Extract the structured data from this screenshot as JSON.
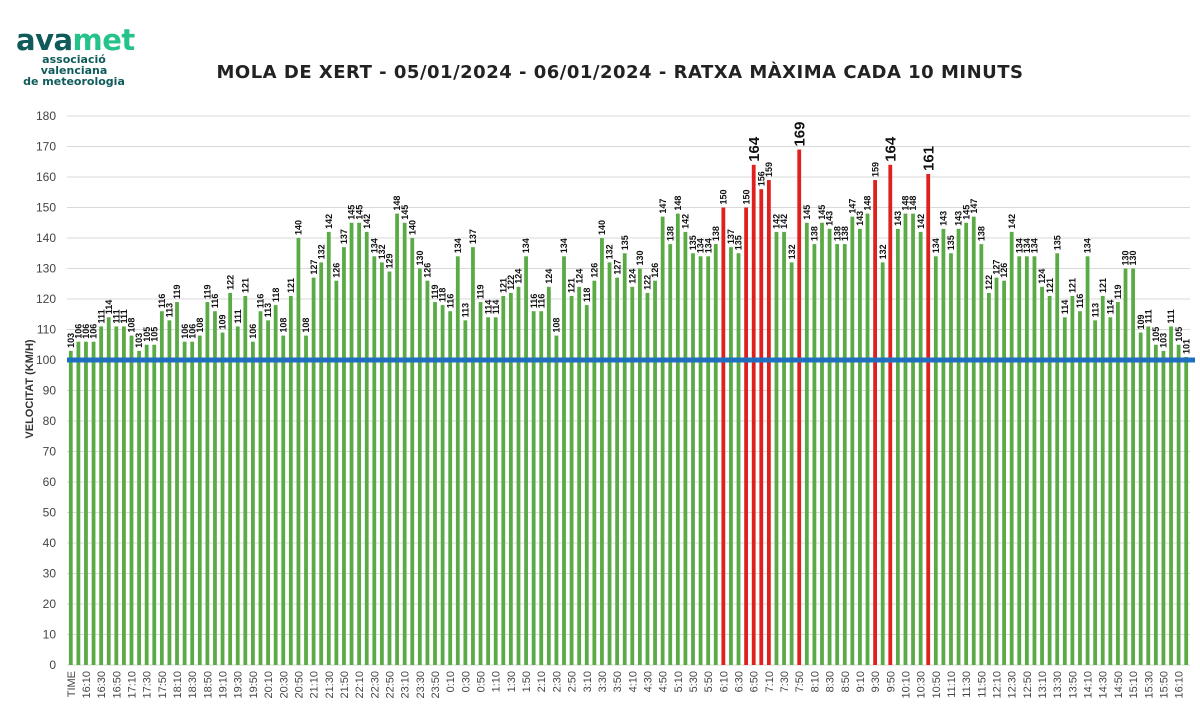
{
  "logo": {
    "part1": "ava",
    "part2": "met",
    "line1": "associació valenciana",
    "line2": "de meteorologia"
  },
  "chart_data": {
    "type": "bar",
    "title": "MOLA DE XERT - 05/01/2024 - 06/01/2024 - RATXA MÀXIMA CADA 10 MINUTS",
    "ylabel": "VELOCITAT  (KM/H)",
    "xlabel": "",
    "ylim": [
      0,
      180
    ],
    "ytick_step": 10,
    "grid": true,
    "first_category_label": "TIME",
    "start_time": "16:00",
    "interval_minutes": 10,
    "x_label_every": 2,
    "values": [
      103,
      106,
      106,
      106,
      111,
      114,
      111,
      111,
      108,
      103,
      105,
      105,
      116,
      113,
      119,
      106,
      106,
      108,
      119,
      116,
      109,
      122,
      111,
      121,
      106,
      116,
      113,
      118,
      108,
      121,
      140,
      108,
      127,
      132,
      142,
      126,
      137,
      145,
      145,
      142,
      134,
      132,
      129,
      148,
      145,
      140,
      130,
      126,
      119,
      118,
      116,
      134,
      113,
      137,
      119,
      114,
      114,
      121,
      122,
      124,
      134,
      116,
      116,
      124,
      108,
      134,
      121,
      124,
      118,
      126,
      140,
      132,
      127,
      135,
      124,
      130,
      122,
      126,
      147,
      138,
      148,
      142,
      135,
      134,
      134,
      138,
      150,
      137,
      135,
      150,
      164,
      156,
      159,
      142,
      142,
      132,
      169,
      145,
      138,
      145,
      143,
      138,
      138,
      147,
      143,
      148,
      159,
      132,
      164,
      143,
      148,
      148,
      142,
      161,
      134,
      143,
      135,
      143,
      145,
      147,
      138,
      122,
      127,
      126,
      142,
      134,
      134,
      134,
      124,
      121,
      135,
      114,
      121,
      116,
      134,
      113,
      121,
      114,
      119,
      130,
      130,
      109,
      111,
      105,
      103,
      111,
      105,
      101
    ],
    "threshold_line": 100,
    "highlight_threshold": 150,
    "colors": {
      "normal": "#5aab46",
      "highlight": "#e0201c",
      "threshold_line": "#1f6fc0",
      "grid": "#d9d9d9"
    }
  }
}
